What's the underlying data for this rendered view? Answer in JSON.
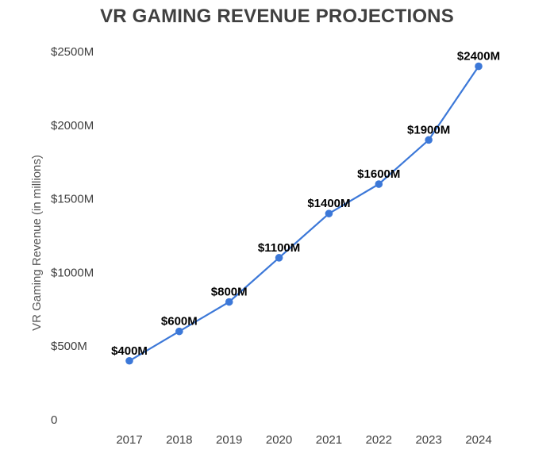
{
  "chart_data": {
    "type": "line",
    "title": "VR GAMING REVENUE PROJECTIONS",
    "xlabel": "",
    "ylabel": "VR Gaming Revenue (in millions)",
    "x": [
      "2017",
      "2018",
      "2019",
      "2020",
      "2021",
      "2022",
      "2023",
      "2024"
    ],
    "series": [
      {
        "values": [
          400,
          600,
          800,
          1100,
          1400,
          1600,
          1900,
          2400
        ],
        "data_labels": [
          "$400M",
          "$600M",
          "$800M",
          "$1100M",
          "$1400M",
          "$1600M",
          "$1900M",
          "$2400M"
        ]
      }
    ],
    "ylim": [
      0,
      2500
    ],
    "yticks": [
      0,
      500,
      1000,
      1500,
      2000,
      2500
    ],
    "ytick_labels": [
      "0",
      "$500M",
      "$1000M",
      "$1500M",
      "$2000M",
      "$2500M"
    ],
    "grid": false,
    "legend": "none",
    "colors": {
      "line": "#3c78d8",
      "title": "#404040",
      "tick_labels": "#404040",
      "data_labels": "#000000"
    }
  }
}
